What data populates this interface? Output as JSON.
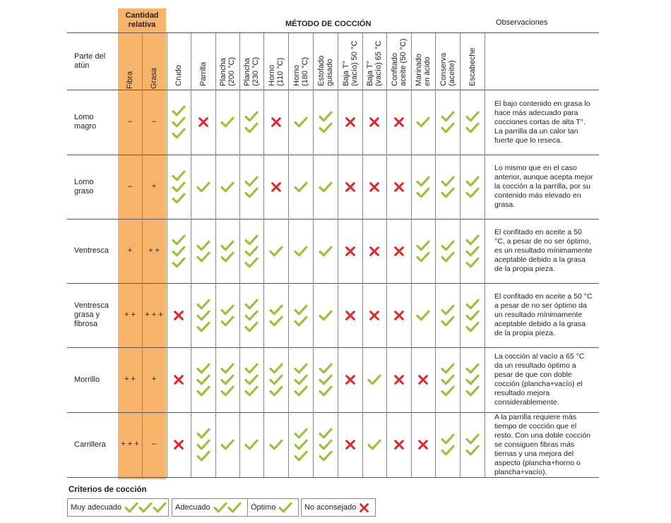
{
  "header": {
    "cantidad_relativa": "Cantidad relativa",
    "metodo": "MÉTODO DE COCCIÓN",
    "observaciones": "Observaciones",
    "parte": "Parte del atún",
    "fibra": "Fibra",
    "grasa": "Grasa"
  },
  "methods": [
    [
      "Crudo"
    ],
    [
      "Parrilla"
    ],
    [
      "Plancha",
      "(200 °C)"
    ],
    [
      "Plancha",
      "(230 °C)"
    ],
    [
      "Horno",
      "(110 °C)"
    ],
    [
      "Horno",
      "(180 °C)"
    ],
    [
      "Estofado",
      "guisado"
    ],
    [
      "Baja T°",
      "(vacío) 50 °C"
    ],
    [
      "Baja T°",
      "(vacío) 65 °C"
    ],
    [
      "Confitado",
      "aceite (50 °C)"
    ],
    [
      "Marinado",
      "en ácido"
    ],
    [
      "Conserva",
      "(aceite)"
    ],
    [
      "Escabeche"
    ]
  ],
  "rows": [
    {
      "part": "Lomo magro",
      "fibra": "–",
      "grasa": "–",
      "ratings": [
        3,
        0,
        1,
        2,
        0,
        1,
        2,
        0,
        0,
        0,
        1,
        2,
        2
      ],
      "obs": "El bajo contenido en grasa lo hace más adecuado para cocciones cortas de alta T°. La parrilla da un calor tan fuerte que lo reseca."
    },
    {
      "part": "Lomo graso",
      "fibra": "–",
      "grasa": "+",
      "ratings": [
        3,
        1,
        1,
        2,
        0,
        1,
        1,
        0,
        0,
        0,
        2,
        2,
        2
      ],
      "obs": "Lo mismo que en el caso anterior, aunque acepta mejor la cocción a la parrilla, por su contenido más elevado en grasa."
    },
    {
      "part": "Ventresca",
      "fibra": "+",
      "grasa": "+ +",
      "ratings": [
        3,
        2,
        2,
        3,
        1,
        1,
        1,
        0,
        0,
        0,
        2,
        2,
        3
      ],
      "obs": "El confitado en aceite a 50 °C, a pesar de no ser óptimo, es un resultado mínimamente aceptable debido a la grasa de la propia pieza."
    },
    {
      "part": "Ventresca grasa y fibrosa",
      "fibra": "+ +",
      "grasa": "+ + +",
      "ratings": [
        0,
        3,
        2,
        3,
        2,
        2,
        1,
        0,
        0,
        0,
        1,
        2,
        3
      ],
      "obs": "El confitado en aceite a 50 °C a pesar de no ser óptimo da un resultado mínimamente aceptable debido a la grasa de la propia pieza."
    },
    {
      "part": "Morrillo",
      "fibra": "+ +",
      "grasa": "+",
      "ratings": [
        0,
        3,
        3,
        3,
        3,
        3,
        3,
        0,
        1,
        0,
        0,
        3,
        3
      ],
      "obs": "La cocción al vacío a 65 °C da un resultado óptimo a pesar de que con doble cocción (plancha+vacío) el resultado mejora considerablemente."
    },
    {
      "part": "Carrillera",
      "fibra": "+ + +",
      "grasa": "–",
      "ratings": [
        0,
        3,
        1,
        1,
        1,
        3,
        3,
        0,
        1,
        0,
        0,
        2,
        2
      ],
      "obs": "A la parrilla requiere más tiempo de cocción que el resto. Con una doble cocción se consiguen fibras más tiernas y una mejora del aspecto (plancha+horno o plancha+vacío)."
    }
  ],
  "legend": {
    "title": "Criterios de cocción",
    "muy_adecuado": "Muy adecuado",
    "adecuado": "Adecuado",
    "optimo": "Óptimo",
    "no_aconsejado": "No aconsejado"
  },
  "colors": {
    "check": "#9bc03a",
    "cross": "#e3262b",
    "orange": "#f7b36a"
  }
}
